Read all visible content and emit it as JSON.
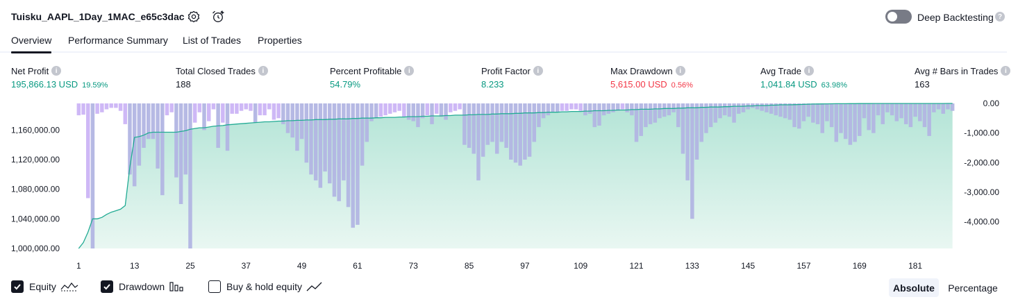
{
  "header": {
    "strategy_title": "Tuisku_AAPL_1Day_1MAC_e65c3dac",
    "settings_icon": "gear-icon",
    "alert_icon": "alarm-clock-plus-icon",
    "deep_backtesting_label": "Deep Backtesting",
    "deep_backtesting_on": false
  },
  "tabs": [
    {
      "label": "Overview",
      "active": true
    },
    {
      "label": "Performance Summary",
      "active": false
    },
    {
      "label": "List of Trades",
      "active": false
    },
    {
      "label": "Properties",
      "active": false
    }
  ],
  "metrics": {
    "net_profit": {
      "label": "Net Profit",
      "value": "195,866.13 USD",
      "pct": "19.59%"
    },
    "total_closed_trades": {
      "label": "Total Closed Trades",
      "value": "188"
    },
    "percent_profitable": {
      "label": "Percent Profitable",
      "value": "54.79%"
    },
    "profit_factor": {
      "label": "Profit Factor",
      "value": "8.233"
    },
    "max_drawdown": {
      "label": "Max Drawdown",
      "value": "5,615.00 USD",
      "pct": "0.56%"
    },
    "avg_trade": {
      "label": "Avg Trade",
      "value": "1,041.84 USD",
      "pct": "63.98%"
    },
    "avg_bars": {
      "label": "Avg # Bars in Trades",
      "value": "163"
    }
  },
  "chart_data": {
    "type": "line",
    "left_axis": {
      "ticks": [
        "1,000,000.00",
        "1,040,000.00",
        "1,080,000.00",
        "1,120,000.00",
        "1,160,000.00"
      ],
      "range": [
        1000000,
        1195866
      ]
    },
    "right_axis": {
      "ticks": [
        "0.00",
        "-1,000.00",
        "-2,000.00",
        "-3,000.00",
        "-4,000.00"
      ],
      "range": [
        -4900,
        0
      ]
    },
    "x_ticks": [
      "1",
      "13",
      "25",
      "37",
      "49",
      "61",
      "73",
      "85",
      "97",
      "109",
      "121",
      "133",
      "145",
      "157",
      "169",
      "181"
    ],
    "x_range": [
      1,
      188
    ],
    "colors": {
      "equity_line": "#22ab94",
      "equity_fill": "#b8e6d9",
      "drawdown_bar": "#cbb4f5",
      "drawdown_overlap": "#b2b5e3"
    },
    "series": [
      {
        "name": "Equity",
        "values": [
          1000000,
          1008000,
          1022000,
          1040000,
          1040000,
          1042000,
          1046000,
          1049000,
          1051000,
          1053000,
          1058000,
          1110000,
          1150000,
          1151000,
          1153000,
          1156000,
          1157000,
          1157000,
          1157000,
          1157000,
          1157000,
          1157000,
          1158000,
          1159000,
          1161000,
          1162000,
          1163000,
          1163000,
          1164000,
          1165000,
          1165500,
          1166000,
          1167000,
          1167500,
          1168000,
          1168500,
          1169000,
          1169500,
          1170000,
          1170500,
          1171000,
          1171000,
          1171500,
          1172000,
          1172000,
          1172500,
          1172500,
          1173000,
          1173000,
          1173500,
          1173500,
          1174000,
          1174000,
          1174000,
          1174500,
          1174500,
          1175000,
          1175000,
          1175000,
          1175500,
          1175500,
          1176000,
          1176000,
          1176000,
          1176500,
          1176500,
          1177000,
          1177000,
          1177000,
          1177500,
          1177500,
          1178000,
          1178000,
          1178000,
          1178500,
          1178500,
          1179000,
          1179000,
          1179000,
          1179500,
          1179500,
          1180000,
          1180000,
          1180000,
          1180500,
          1180500,
          1181000,
          1181000,
          1181000,
          1181500,
          1181500,
          1182000,
          1182000,
          1182000,
          1182500,
          1182500,
          1183000,
          1183000,
          1183000,
          1183500,
          1183500,
          1184000,
          1184000,
          1184000,
          1184500,
          1184500,
          1185000,
          1185000,
          1185000,
          1185500,
          1185500,
          1186000,
          1186000,
          1186000,
          1186500,
          1186500,
          1187000,
          1187000,
          1187000,
          1187500,
          1187500,
          1188000,
          1188000,
          1188000,
          1188500,
          1188500,
          1189000,
          1189000,
          1189000,
          1189500,
          1189500,
          1190000,
          1190000,
          1190000,
          1190500,
          1190500,
          1191000,
          1191000,
          1191000,
          1191500,
          1191500,
          1192000,
          1192000,
          1192000,
          1192500,
          1192500,
          1193000,
          1193000,
          1193000,
          1193500,
          1193500,
          1194000,
          1194000,
          1194000,
          1194200,
          1194400,
          1194600,
          1194800,
          1195000,
          1195100,
          1195200,
          1195300,
          1195400,
          1195500,
          1195500,
          1195500,
          1195600,
          1195600,
          1195700,
          1195700,
          1195700,
          1195800,
          1195800,
          1195800,
          1195800,
          1195800,
          1195800,
          1195800,
          1195800,
          1195800,
          1195800,
          1195800,
          1195800,
          1195800,
          1195800,
          1195800,
          1195800,
          1195850,
          1195866
        ]
      },
      {
        "name": "Drawdown",
        "values": [
          -400,
          -380,
          -3200,
          -4900,
          -350,
          -300,
          -200,
          -150,
          -150,
          -250,
          -700,
          -2400,
          -2800,
          -2100,
          -1500,
          -1200,
          -1200,
          -2200,
          -3100,
          -400,
          -300,
          -2500,
          -3400,
          -2400,
          -4900,
          -650,
          -300,
          -900,
          -600,
          -200,
          -1500,
          -650,
          -1600,
          -350,
          -350,
          -250,
          -200,
          -250,
          -650,
          -400,
          -400,
          -200,
          -550,
          -500,
          -700,
          -1000,
          -1150,
          -1600,
          -1200,
          -2000,
          -2400,
          -2600,
          -2850,
          -2300,
          -2700,
          -3150,
          -3300,
          -2600,
          -3500,
          -4200,
          -4100,
          -2100,
          -1300,
          -600,
          -500,
          -450,
          -400,
          -350,
          -300,
          -250,
          -450,
          -550,
          -600,
          -800,
          -500,
          -400,
          -700,
          -350,
          -450,
          -550,
          -300,
          -250,
          -200,
          -1400,
          -1500,
          -1700,
          -2600,
          -1800,
          -1400,
          -1300,
          -1700,
          -1300,
          -1500,
          -1900,
          -2000,
          -2100,
          -1900,
          -1800,
          -1300,
          -800,
          -500,
          -400,
          -300,
          -300,
          -250,
          -250,
          -200,
          -200,
          -250,
          -400,
          -350,
          -800,
          -750,
          -400,
          -350,
          -300,
          -250,
          -200,
          -300,
          -400,
          -1300,
          -1100,
          -800,
          -700,
          -650,
          -500,
          -450,
          -400,
          -300,
          -800,
          -1700,
          -2600,
          -3900,
          -1900,
          -1300,
          -1000,
          -800,
          -650,
          -500,
          -400,
          -450,
          -650,
          -350,
          -300,
          -200,
          -150,
          -200,
          -250,
          -300,
          -350,
          -400,
          -450,
          -500,
          -550,
          -800,
          -850,
          -600,
          -450,
          -650,
          -700,
          -1000,
          -600,
          -800,
          -1300,
          -1000,
          -1200,
          -1400,
          -1300,
          -1100,
          -500,
          -900,
          -1000,
          -400,
          -700,
          -300,
          -400,
          -600,
          -500,
          -700,
          -800,
          -450,
          -600,
          -800,
          -1100,
          -300,
          -200,
          -350,
          -200,
          -250
        ]
      }
    ]
  },
  "legend": {
    "equity": {
      "label": "Equity",
      "checked": true
    },
    "drawdown": {
      "label": "Drawdown",
      "checked": true
    },
    "buy_hold": {
      "label": "Buy & hold equity",
      "checked": false
    }
  },
  "mode": {
    "absolute_label": "Absolute",
    "percentage_label": "Percentage",
    "selected": "Absolute"
  }
}
